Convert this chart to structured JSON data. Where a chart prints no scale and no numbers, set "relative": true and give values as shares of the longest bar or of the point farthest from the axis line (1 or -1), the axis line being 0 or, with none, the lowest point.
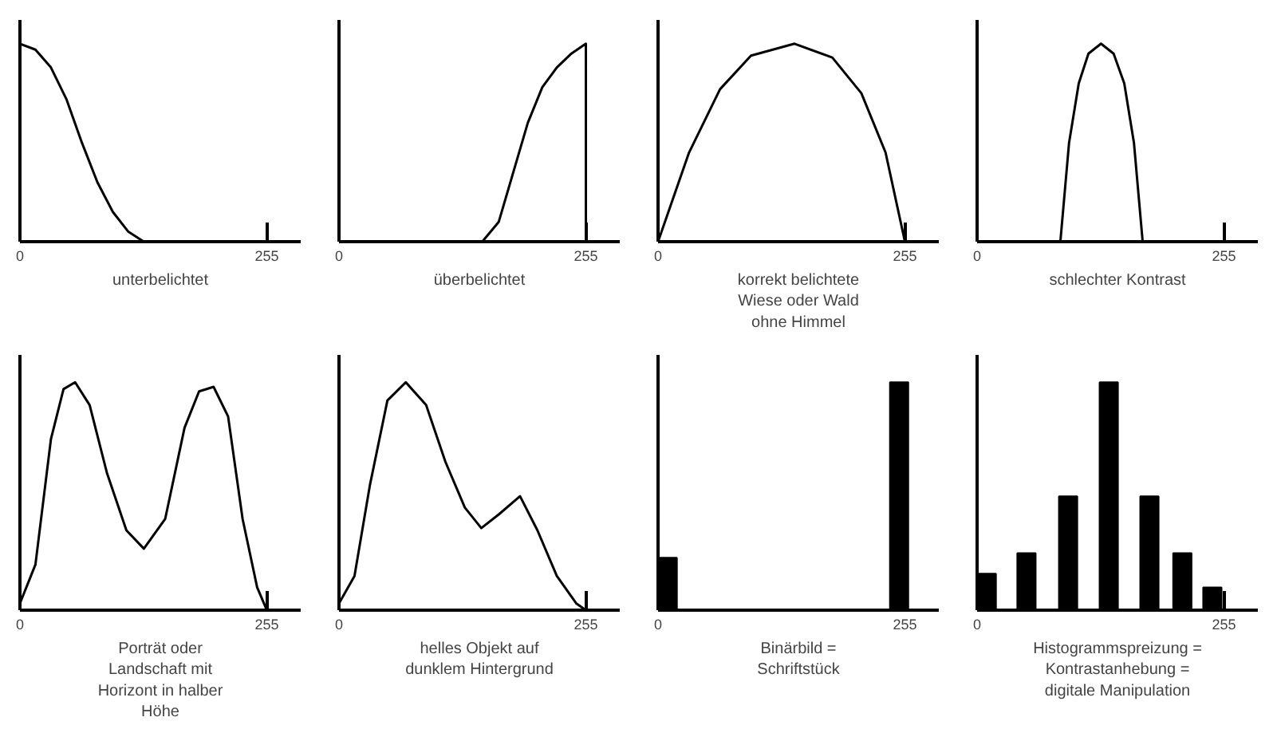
{
  "chart_data": [
    {
      "type": "line",
      "relative": true,
      "xlabel": "unterbelichtet",
      "xlim": [
        0,
        290
      ],
      "xticks": [
        0,
        255
      ],
      "grid": false,
      "x": [
        0,
        16,
        32,
        48,
        64,
        80,
        96,
        112,
        128
      ],
      "series": [
        {
          "color": "#000000",
          "values": [
            1,
            0.97,
            0.88,
            0.72,
            0.5,
            0.3,
            0.15,
            0.05,
            0
          ]
        }
      ]
    },
    {
      "type": "line",
      "relative": true,
      "xlabel": "überbelichtet",
      "xlim": [
        0,
        290
      ],
      "xticks": [
        0,
        255
      ],
      "grid": false,
      "x": [
        148,
        165,
        180,
        195,
        210,
        225,
        240,
        255,
        255
      ],
      "series": [
        {
          "color": "#000000",
          "values": [
            0,
            0.1,
            0.35,
            0.6,
            0.78,
            0.88,
            0.95,
            1,
            0
          ]
        }
      ]
    },
    {
      "type": "line",
      "relative": true,
      "xlabel": "korrekt belichtete\nWiese oder Wald\nohne Himmel",
      "xlim": [
        0,
        290
      ],
      "xticks": [
        0,
        255
      ],
      "grid": false,
      "x": [
        0,
        32,
        64,
        96,
        141,
        180,
        210,
        235,
        255
      ],
      "series": [
        {
          "color": "#000000",
          "values": [
            0,
            0.45,
            0.77,
            0.94,
            1,
            0.93,
            0.75,
            0.45,
            0
          ]
        }
      ]
    },
    {
      "type": "line",
      "relative": true,
      "xlabel": "schlechter Kontrast",
      "xlim": [
        0,
        290
      ],
      "xticks": [
        0,
        255
      ],
      "grid": false,
      "x": [
        86,
        95,
        105,
        115,
        128,
        141,
        152,
        162,
        171
      ],
      "series": [
        {
          "color": "#000000",
          "values": [
            0,
            0.5,
            0.8,
            0.95,
            1,
            0.95,
            0.8,
            0.5,
            0
          ]
        }
      ]
    },
    {
      "type": "line",
      "relative": true,
      "xlabel": "Porträt oder\nLandschaft mit\nHorizont in halber\nHöhe",
      "xlim": [
        0,
        290
      ],
      "xticks": [
        0,
        255
      ],
      "grid": false,
      "x": [
        0,
        16,
        32,
        45,
        57,
        72,
        90,
        110,
        128,
        150,
        170,
        185,
        200,
        215,
        230,
        245,
        255
      ],
      "series": [
        {
          "color": "#000000",
          "values": [
            0.03,
            0.2,
            0.75,
            0.97,
            1,
            0.9,
            0.6,
            0.35,
            0.27,
            0.4,
            0.8,
            0.96,
            0.98,
            0.85,
            0.4,
            0.1,
            0
          ]
        }
      ]
    },
    {
      "type": "line",
      "relative": true,
      "xlabel": "helles Objekt auf\ndunklem Hintergrund",
      "xlim": [
        0,
        290
      ],
      "xticks": [
        0,
        255
      ],
      "grid": false,
      "x": [
        0,
        16,
        32,
        50,
        69,
        90,
        110,
        130,
        147,
        165,
        187,
        205,
        225,
        245,
        255
      ],
      "series": [
        {
          "color": "#000000",
          "values": [
            0.03,
            0.15,
            0.55,
            0.92,
            1,
            0.9,
            0.65,
            0.45,
            0.36,
            0.42,
            0.5,
            0.35,
            0.15,
            0.03,
            0
          ]
        }
      ]
    },
    {
      "type": "bar",
      "relative": true,
      "xlabel": "Binärbild =\nSchriftstück",
      "xlim": [
        0,
        290
      ],
      "xticks": [
        0,
        255
      ],
      "grid": false,
      "x": [
        10,
        249
      ],
      "series": [
        {
          "color": "#000000",
          "values": [
            0.23,
            1
          ]
        }
      ]
    },
    {
      "type": "bar",
      "relative": true,
      "xlabel": "Histogrammspreizung =\nKontrastanhebung =\ndigitale Manipulation",
      "xlim": [
        0,
        290
      ],
      "xticks": [
        0,
        255
      ],
      "grid": false,
      "x": [
        10,
        51,
        94,
        136,
        178,
        212,
        243
      ],
      "series": [
        {
          "color": "#000000",
          "values": [
            0.16,
            0.25,
            0.5,
            1,
            0.5,
            0.25,
            0.1
          ]
        }
      ]
    }
  ]
}
